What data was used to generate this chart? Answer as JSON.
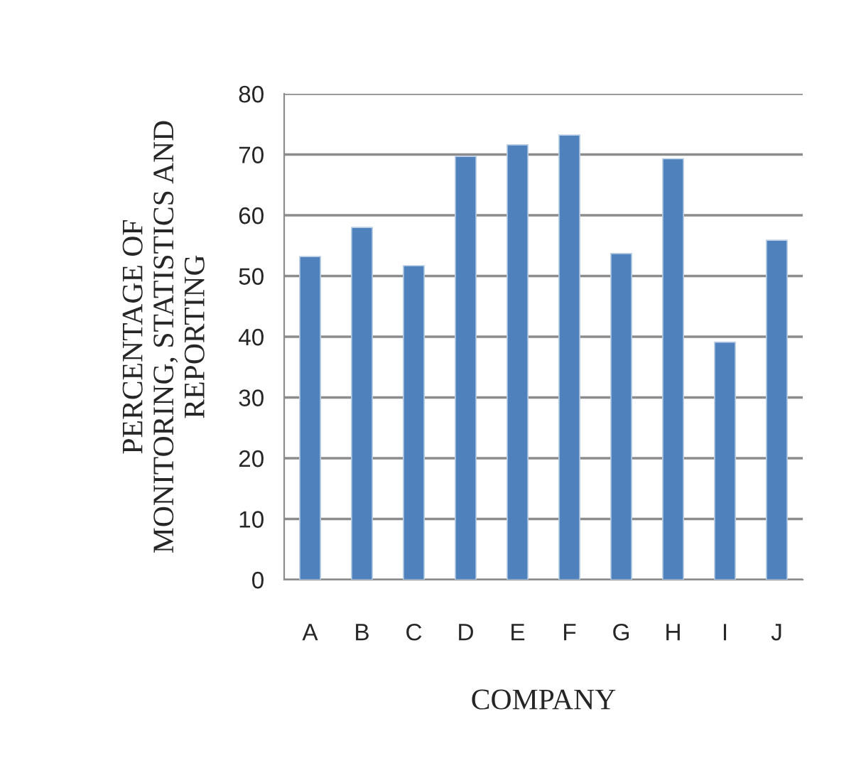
{
  "chart_data": {
    "type": "bar",
    "categories": [
      "A",
      "B",
      "C",
      "D",
      "E",
      "F",
      "G",
      "H",
      "I",
      "J"
    ],
    "values": [
      53.2,
      58.0,
      51.7,
      69.7,
      71.6,
      73.2,
      53.7,
      69.3,
      39.1,
      55.9
    ],
    "color": "#4f81bd",
    "xlabel": "COMPANY",
    "ylabel": "PERCENTAGE OF\nMONITORING, STATISTICS AND\nREPORTING",
    "ylim": [
      0,
      80
    ],
    "yticks": [
      0,
      10,
      20,
      30,
      40,
      50,
      60,
      70,
      80
    ],
    "grid": "y",
    "legend": false
  }
}
